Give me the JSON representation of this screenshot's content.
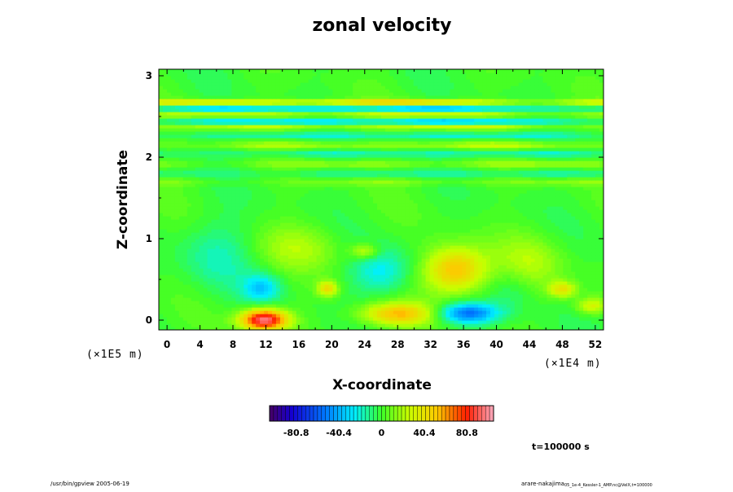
{
  "chart_data": {
    "type": "heatmap",
    "title": "zonal velocity",
    "xlabel": "X-coordinate",
    "ylabel": "Z-coordinate",
    "x_unit": "(×1E4 m)",
    "y_unit": "(×1E5 m)",
    "x_ticks": [
      "0",
      "4",
      "8",
      "12",
      "16",
      "20",
      "24",
      "28",
      "32",
      "36",
      "40",
      "44",
      "48",
      "52"
    ],
    "y_ticks": [
      "0",
      "1",
      "2",
      "3"
    ],
    "xlim": [
      -1,
      53
    ],
    "ylim": [
      -0.12,
      3.08
    ],
    "colorbar": {
      "range": [
        -106,
        106
      ],
      "ticks": [
        "-80.8",
        "-40.4",
        "0",
        "40.4",
        "80.8"
      ],
      "tick_values": [
        -80.8,
        -40.4,
        0,
        40.4,
        80.8
      ],
      "n_levels": 56
    },
    "features": [
      {
        "x": 11.8,
        "z": 0.01,
        "value": 100,
        "sx": 2.0,
        "sz": 0.09
      },
      {
        "x": 28,
        "z": 0.08,
        "value": 52,
        "sx": 3.2,
        "sz": 0.1
      },
      {
        "x": 36.5,
        "z": 0.09,
        "value": -55,
        "sx": 2.6,
        "sz": 0.09
      },
      {
        "x": 35,
        "z": 0.62,
        "value": 58,
        "sx": 2.6,
        "sz": 0.2
      },
      {
        "x": 11.5,
        "z": 0.4,
        "value": -30,
        "sx": 1.6,
        "sz": 0.12
      },
      {
        "x": 19.5,
        "z": 0.39,
        "value": 42,
        "sx": 0.9,
        "sz": 0.07
      },
      {
        "x": 26,
        "z": 0.6,
        "value": -25,
        "sx": 2.5,
        "sz": 0.2
      },
      {
        "x": 48,
        "z": 0.38,
        "value": 38,
        "sx": 1.2,
        "sz": 0.07
      },
      {
        "x": 51.5,
        "z": 0.18,
        "value": 32,
        "sx": 1.3,
        "sz": 0.07
      },
      {
        "x": 16,
        "z": 0.9,
        "value": 18,
        "sx": 3.5,
        "sz": 0.2
      },
      {
        "x": 6,
        "z": 0.8,
        "value": -15,
        "sx": 3.0,
        "sz": 0.3
      },
      {
        "x": 44,
        "z": 0.7,
        "value": 20,
        "sx": 3.0,
        "sz": 0.25
      },
      {
        "x": 24,
        "z": 0.85,
        "value": 30,
        "sx": 1.2,
        "sz": 0.07
      },
      {
        "x": 42,
        "z": 0.4,
        "value": -12,
        "sx": 2.0,
        "sz": 0.2
      }
    ],
    "bands": [
      {
        "z": 2.68,
        "amp": 48,
        "width": 0.025
      },
      {
        "z": 2.6,
        "amp": -40,
        "width": 0.025
      },
      {
        "z": 2.53,
        "amp": 28,
        "width": 0.025
      },
      {
        "z": 2.44,
        "amp": -38,
        "width": 0.025
      },
      {
        "z": 2.38,
        "amp": 25,
        "width": 0.025
      },
      {
        "z": 2.27,
        "amp": -22,
        "width": 0.025
      },
      {
        "z": 2.15,
        "amp": 20,
        "width": 0.03
      },
      {
        "z": 2.05,
        "amp": -18,
        "width": 0.03
      },
      {
        "z": 1.92,
        "amp": 16,
        "width": 0.03
      },
      {
        "z": 1.8,
        "amp": -14,
        "width": 0.035
      },
      {
        "z": 1.7,
        "amp": 12,
        "width": 0.035
      }
    ]
  },
  "footer": {
    "left": "/usr/bin/gpview 2005-06-19",
    "right_main": "arare-nakajima",
    "right_small": "05_1e-4_Kessler-1_AMP.nc@VelX,t=100000"
  },
  "time_label": "t=100000 s"
}
